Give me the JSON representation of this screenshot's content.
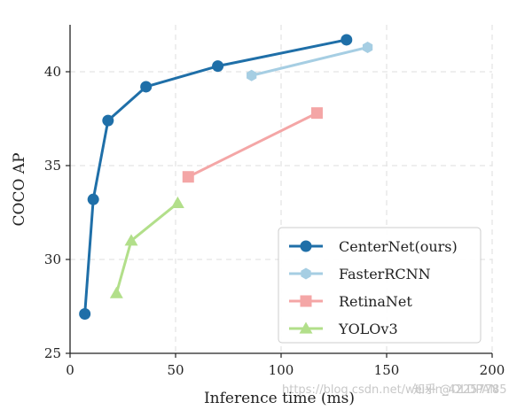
{
  "chart_data": {
    "type": "line",
    "xlabel": "Inference time (ms)",
    "ylabel": "COCO AP",
    "xlim": [
      0,
      200
    ],
    "ylim": [
      25,
      42.5
    ],
    "xticks": [
      0,
      50,
      100,
      150,
      200
    ],
    "yticks": [
      25,
      30,
      35,
      40
    ],
    "grid": true,
    "legend_position": "bottom-right",
    "series": [
      {
        "name": "CenterNet(ours)",
        "color": "#1f6fa8",
        "marker": "circle",
        "x": [
          7,
          11,
          18,
          36,
          70,
          131
        ],
        "y": [
          27.1,
          33.2,
          37.4,
          39.2,
          40.3,
          41.7
        ]
      },
      {
        "name": "FasterRCNN",
        "color": "#a6cee3",
        "marker": "hexagon",
        "x": [
          86,
          141
        ],
        "y": [
          39.8,
          41.3
        ]
      },
      {
        "name": "RetinaNet",
        "color": "#f4a6a6",
        "marker": "square",
        "x": [
          56,
          117
        ],
        "y": [
          34.4,
          37.8
        ]
      },
      {
        "name": "YOLOv3",
        "color": "#b2df8a",
        "marker": "triangle",
        "x": [
          22,
          29,
          51
        ],
        "y": [
          28.2,
          31.0,
          33.0
        ]
      }
    ]
  },
  "watermark": {
    "left_text": "https://blog.csdn.net/weixin_42257785",
    "right_text": "知乎 @OLDPAN"
  }
}
